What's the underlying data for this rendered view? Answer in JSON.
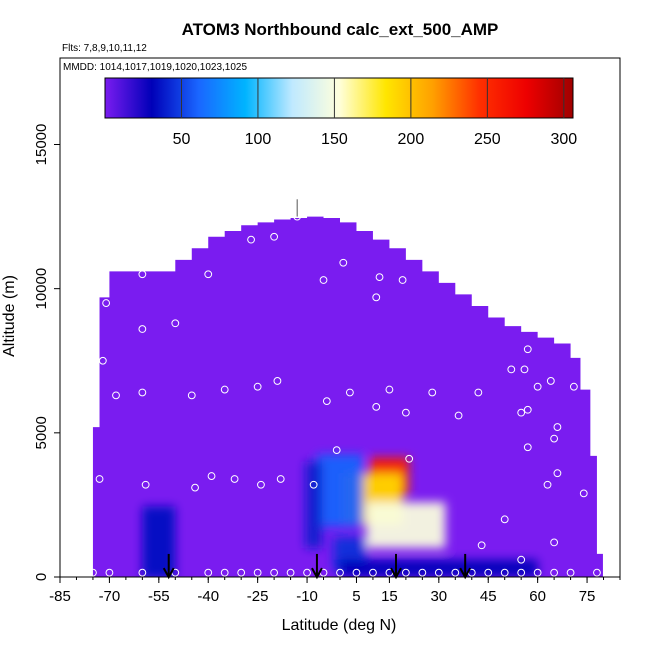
{
  "chart_data": {
    "type": "heatmap",
    "title": "ATOM3 Northbound calc_ext_500_AMP",
    "flights_text": "Flts: 7,8,9,10,11,12",
    "dates_text": "MMDD: 1014,1017,1019,1020,1023,1025",
    "xlabel": "Latitude (deg N)",
    "ylabel": "Altitude (m)",
    "xlim": [
      -85,
      85
    ],
    "ylim": [
      0,
      18000
    ],
    "x_ticks": [
      -85,
      -70,
      -55,
      -40,
      -25,
      -10,
      5,
      15,
      30,
      45,
      60,
      75
    ],
    "x_tick_labels": [
      "-85",
      "-70",
      "-55",
      "-40",
      "-25",
      "-10",
      "5",
      "15",
      "30",
      "45",
      "60",
      "75"
    ],
    "y_ticks": [
      0,
      5000,
      10000,
      15000
    ],
    "y_tick_labels": [
      "0",
      "5000",
      "10000",
      "15000"
    ],
    "colorbar": {
      "min": 0,
      "max": 306,
      "ticks": [
        50,
        100,
        150,
        200,
        250,
        300
      ],
      "tick_labels": [
        "50",
        "100",
        "150",
        "200",
        "250",
        "300"
      ],
      "colors": [
        "#7a1cf0",
        "#0000b8",
        "#1a66ff",
        "#00b4ff",
        "#bfe9ff",
        "#ffffdc",
        "#ffe600",
        "#ffa000",
        "#ff3000",
        "#ee0000",
        "#a00000"
      ]
    },
    "background_color": "#7a1cf0",
    "coverage_envelope": {
      "latitudes": [
        -75,
        -73,
        -70,
        -65,
        -60,
        -55,
        -50,
        -45,
        -40,
        -35,
        -30,
        -25,
        -20,
        -15,
        -10,
        -5,
        0,
        5,
        10,
        15,
        20,
        25,
        30,
        35,
        40,
        45,
        50,
        55,
        60,
        65,
        70,
        73,
        76,
        78
      ],
      "max_altitude_m": [
        5200,
        9700,
        10600,
        10600,
        10600,
        10600,
        11000,
        11400,
        11800,
        12000,
        12200,
        12300,
        12400,
        12450,
        12500,
        12450,
        12300,
        12000,
        11700,
        11400,
        11000,
        10600,
        10200,
        9800,
        9400,
        9000,
        8700,
        8500,
        8300,
        8100,
        7600,
        6500,
        4200,
        800
      ]
    },
    "features": [
      {
        "lat": 15,
        "alt": 3000,
        "value": 300,
        "lat_width": 6,
        "alt_width": 700
      },
      {
        "lat": 15,
        "alt": 3500,
        "value": 255,
        "lat_width": 12,
        "alt_width": 1300
      },
      {
        "lat": 10,
        "alt": 2700,
        "value": 190,
        "lat_width": 18,
        "alt_width": 1800
      },
      {
        "lat": 20,
        "alt": 1800,
        "value": 150,
        "lat_width": 24,
        "alt_width": 1600
      },
      {
        "lat": 0,
        "alt": 3000,
        "value": 60,
        "lat_width": 14,
        "alt_width": 2500
      },
      {
        "lat": -8,
        "alt": 2500,
        "value": 40,
        "lat_width": 5,
        "alt_width": 3000
      },
      {
        "lat": 3,
        "alt": 800,
        "value": 45,
        "lat_width": 10,
        "alt_width": 1200
      },
      {
        "lat": -55,
        "alt": 1200,
        "value": 35,
        "lat_width": 10,
        "alt_width": 2500
      },
      {
        "lat": 30,
        "alt": 300,
        "value": 30,
        "lat_width": 60,
        "alt_width": 600
      }
    ],
    "sample_points": [
      {
        "lat": -76,
        "alt": 5400
      },
      {
        "lat": -73,
        "alt": 3400
      },
      {
        "lat": -72,
        "alt": 7500
      },
      {
        "lat": -71,
        "alt": 9500
      },
      {
        "lat": -68,
        "alt": 6300
      },
      {
        "lat": -60,
        "alt": 8600
      },
      {
        "lat": -60,
        "alt": 10500
      },
      {
        "lat": -60,
        "alt": 6400
      },
      {
        "lat": -59,
        "alt": 3200
      },
      {
        "lat": -50,
        "alt": 8800
      },
      {
        "lat": -45,
        "alt": 6300
      },
      {
        "lat": -44,
        "alt": 3100
      },
      {
        "lat": -40,
        "alt": 10500
      },
      {
        "lat": -39,
        "alt": 3500
      },
      {
        "lat": -35,
        "alt": 6500
      },
      {
        "lat": -32,
        "alt": 3400
      },
      {
        "lat": -27,
        "alt": 11700
      },
      {
        "lat": -25,
        "alt": 6600
      },
      {
        "lat": -24,
        "alt": 3200
      },
      {
        "lat": -20,
        "alt": 11800
      },
      {
        "lat": -19,
        "alt": 6800
      },
      {
        "lat": -18,
        "alt": 3400
      },
      {
        "lat": -13,
        "alt": 12500
      },
      {
        "lat": -8,
        "alt": 3200
      },
      {
        "lat": -5,
        "alt": 10300
      },
      {
        "lat": -4,
        "alt": 6100
      },
      {
        "lat": -1,
        "alt": 4400
      },
      {
        "lat": 1,
        "alt": 10900
      },
      {
        "lat": 3,
        "alt": 6400
      },
      {
        "lat": 11,
        "alt": 9700
      },
      {
        "lat": 11,
        "alt": 5900
      },
      {
        "lat": 12,
        "alt": 10400
      },
      {
        "lat": 15,
        "alt": 6500
      },
      {
        "lat": 19,
        "alt": 10300
      },
      {
        "lat": 20,
        "alt": 5700
      },
      {
        "lat": 21,
        "alt": 4100
      },
      {
        "lat": 28,
        "alt": 6400
      },
      {
        "lat": 36,
        "alt": 5600
      },
      {
        "lat": 42,
        "alt": 6400
      },
      {
        "lat": 43,
        "alt": 1100
      },
      {
        "lat": 50,
        "alt": 2000
      },
      {
        "lat": 52,
        "alt": 7200
      },
      {
        "lat": 55,
        "alt": 5700
      },
      {
        "lat": 55,
        "alt": 600
      },
      {
        "lat": 56,
        "alt": 7200
      },
      {
        "lat": 57,
        "alt": 4500
      },
      {
        "lat": 57,
        "alt": 5800
      },
      {
        "lat": 57,
        "alt": 7900
      },
      {
        "lat": 60,
        "alt": 6600
      },
      {
        "lat": 63,
        "alt": 3200
      },
      {
        "lat": 64,
        "alt": 6800
      },
      {
        "lat": 65,
        "alt": 4800
      },
      {
        "lat": 65,
        "alt": 1200
      },
      {
        "lat": 66,
        "alt": 5200
      },
      {
        "lat": 66,
        "alt": 3600
      },
      {
        "lat": 66,
        "alt": 8400
      },
      {
        "lat": 71,
        "alt": 6600
      },
      {
        "lat": 74,
        "alt": 2900
      },
      {
        "lat": -75,
        "alt": 150
      },
      {
        "lat": -70,
        "alt": 150
      },
      {
        "lat": -60,
        "alt": 150
      },
      {
        "lat": -50,
        "alt": 150
      },
      {
        "lat": -40,
        "alt": 150
      },
      {
        "lat": -35,
        "alt": 150
      },
      {
        "lat": -30,
        "alt": 150
      },
      {
        "lat": -25,
        "alt": 150
      },
      {
        "lat": -20,
        "alt": 150
      },
      {
        "lat": -15,
        "alt": 150
      },
      {
        "lat": -10,
        "alt": 150
      },
      {
        "lat": -5,
        "alt": 150
      },
      {
        "lat": 0,
        "alt": 150
      },
      {
        "lat": 5,
        "alt": 150
      },
      {
        "lat": 10,
        "alt": 150
      },
      {
        "lat": 15,
        "alt": 150
      },
      {
        "lat": 20,
        "alt": 150
      },
      {
        "lat": 25,
        "alt": 150
      },
      {
        "lat": 30,
        "alt": 150
      },
      {
        "lat": 35,
        "alt": 150
      },
      {
        "lat": 40,
        "alt": 150
      },
      {
        "lat": 45,
        "alt": 150
      },
      {
        "lat": 50,
        "alt": 150
      },
      {
        "lat": 55,
        "alt": 150
      },
      {
        "lat": 60,
        "alt": 150
      },
      {
        "lat": 65,
        "alt": 150
      },
      {
        "lat": 70,
        "alt": 150
      },
      {
        "lat": 78,
        "alt": 150
      }
    ],
    "arrow_markers_lat": [
      -52,
      -7,
      17,
      38
    ],
    "top_marker_lat": -13
  }
}
